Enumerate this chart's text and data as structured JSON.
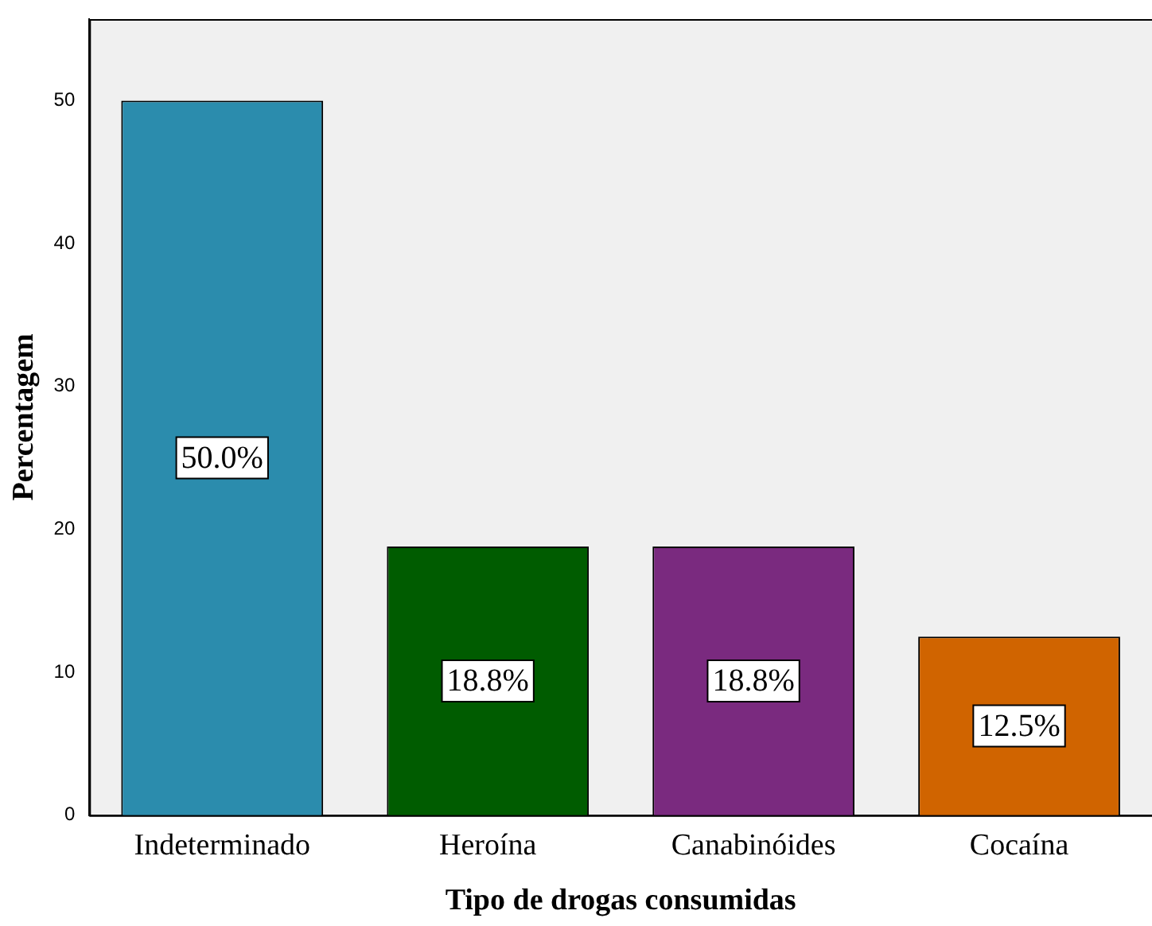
{
  "chart_data": {
    "type": "bar",
    "xlabel": "Tipo de drogas consumidas",
    "ylabel": "Percentagem",
    "categories": [
      "Indeterminado",
      "Heroína",
      "Canabinóides",
      "Cocaína"
    ],
    "values": [
      50,
      18.8,
      18.8,
      12.5
    ],
    "colors": [
      "#2b8cad",
      "#005c00",
      "#7a2a7f",
      "#d06400"
    ],
    "value_labels": [
      "50.0%",
      "18.8%",
      "18.8%",
      "12.5%"
    ],
    "ylim": [
      0,
      55.7
    ],
    "yticks": [
      0,
      10,
      20,
      30,
      40,
      50
    ],
    "grid": false,
    "legend": false
  }
}
